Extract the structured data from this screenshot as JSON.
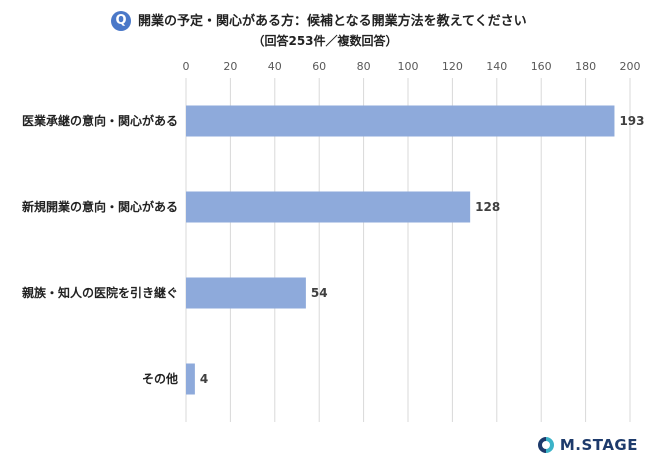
{
  "header": {
    "badge": "Q",
    "title": "開業の予定・関心がある方：候補となる開業方法を教えてください",
    "subtitle": "（回答253件／複数回答）"
  },
  "chart_data": {
    "type": "bar",
    "orientation": "horizontal",
    "categories": [
      "医業承継の意向・関心がある",
      "新規開業の意向・関心がある",
      "親族・知人の医院を引き継ぐ",
      "その他"
    ],
    "values": [
      193,
      128,
      54,
      4
    ],
    "xlim": [
      0,
      200
    ],
    "xticks": [
      0,
      20,
      40,
      60,
      80,
      100,
      120,
      140,
      160,
      180,
      200
    ],
    "grid": true,
    "bar_color": "#8eaadb",
    "data_labels": [
      "193",
      "128",
      "54",
      "4"
    ]
  },
  "logo": {
    "text": "M.STAGE",
    "color": "#1d3a6b",
    "accent": "#3bb3c8"
  }
}
